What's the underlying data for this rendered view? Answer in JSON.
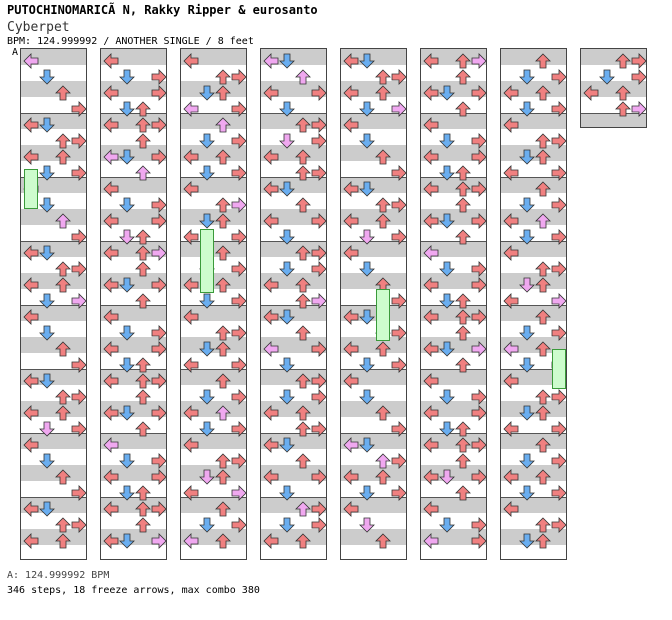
{
  "header": {
    "artist": "PUTOCHINOMARICÃ N, Rakky Ripper & eurosanto",
    "title": "Cyberpet",
    "meta": "BPM: 124.999992 / ANOTHER SINGLE / 8 feet",
    "section_letter": "A"
  },
  "footer": {
    "bpm_line": "A: 124.999992 BPM",
    "stats_line": "346 steps, 18 freeze arrows, max combo 380"
  },
  "colors": {
    "left": "#f08080",
    "down": "#6aaef0",
    "up": "#f08080",
    "right": "#f08080",
    "purple": "#f0a8f0",
    "freeze": "#cdfccd",
    "band": "#cccccc"
  },
  "chart": {
    "columns": 8,
    "lanes": [
      "left",
      "down",
      "up",
      "right"
    ],
    "patterns": [
      "L...|.D..|..U.|...R|LD..|..UR|L.U.|.D.R",
      "..U.|L...|.D.R|L..R|.DU.|L.UR|..U.|LD.R",
      "L.U.|.D.R|L...|..UR|.DU.|L..R|..U.|.D.R",
      ".D.R|L.U.|..UR|LD..|..U.|L..R|.D..|..UR"
    ]
  }
}
